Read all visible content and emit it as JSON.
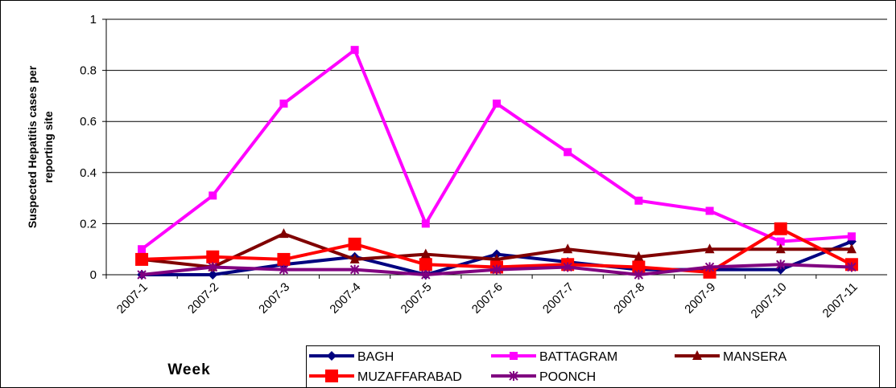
{
  "chart_data": {
    "type": "line",
    "ylabel": [
      "Suspected Hepatitis cases per",
      "reporting site"
    ],
    "xlabel": "Week",
    "categories": [
      "2007-1",
      "2007-2",
      "2007-3",
      "2007-4",
      "2007-5",
      "2007-6",
      "2007-7",
      "2007-8",
      "2007-9",
      "2007-10",
      "2007-11"
    ],
    "series": [
      {
        "name": "BAGH",
        "color": "#000080",
        "marker": "diamond",
        "values": [
          0,
          0,
          0.04,
          0.07,
          0,
          0.08,
          0.05,
          0.02,
          0.02,
          0.02,
          0.13
        ]
      },
      {
        "name": "BATTAGRAM",
        "color": "#ff00ff",
        "marker": "square",
        "values": [
          0.1,
          0.31,
          0.67,
          0.88,
          0.2,
          0.67,
          0.48,
          0.29,
          0.25,
          0.13,
          0.15
        ]
      },
      {
        "name": "MANSERA",
        "color": "#800000",
        "marker": "triangle",
        "values": [
          0.06,
          0.03,
          0.16,
          0.06,
          0.08,
          0.06,
          0.1,
          0.07,
          0.1,
          0.1,
          0.1
        ]
      },
      {
        "name": "MUZAFFARABAD",
        "color": "#ff0000",
        "marker": "bigsquare",
        "values": [
          0.06,
          0.07,
          0.06,
          0.12,
          0.04,
          0.03,
          0.04,
          0.03,
          0.01,
          0.18,
          0.04
        ]
      },
      {
        "name": "POONCH",
        "color": "#800080",
        "marker": "star",
        "values": [
          0,
          0.03,
          0.02,
          0.02,
          0,
          0.02,
          0.03,
          0,
          0.03,
          0.04,
          0.03
        ]
      }
    ],
    "ylim": [
      0,
      1
    ],
    "yticks": [
      0,
      0.2,
      0.4,
      0.6,
      0.8,
      1
    ],
    "grid": true
  }
}
